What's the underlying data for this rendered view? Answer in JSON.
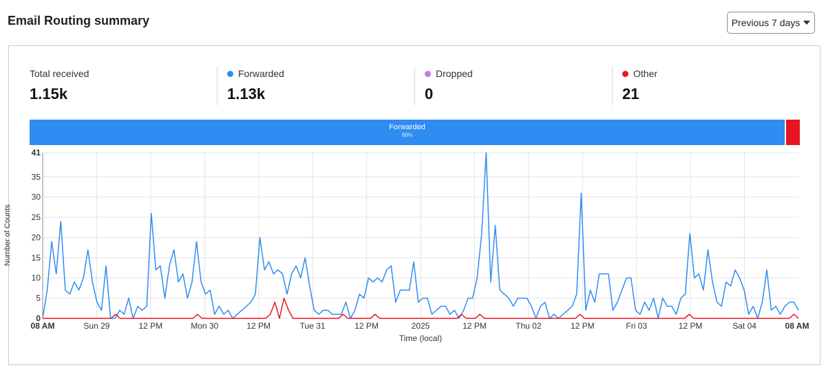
{
  "header": {
    "title": "Email Routing summary",
    "range_label": "Previous 7 days"
  },
  "stats": [
    {
      "label": "Total received",
      "value": "1.15k",
      "color": ""
    },
    {
      "label": "Forwarded",
      "value": "1.13k",
      "color": "#2f8cf2"
    },
    {
      "label": "Dropped",
      "value": "0",
      "color": "#c77be0"
    },
    {
      "label": "Other",
      "value": "21",
      "color": "#e8141f"
    }
  ],
  "stacked_bar": {
    "forwarded_label": "Forwarded",
    "forwarded_percent": "98%",
    "forwarded_fraction": 0.98,
    "other_fraction": 0.02
  },
  "chart_data": {
    "type": "line",
    "xlabel": "Time (local)",
    "ylabel": "Number of Counts",
    "ylim": [
      0,
      41
    ],
    "yticks": [
      "0",
      "5",
      "10",
      "15",
      "20",
      "25",
      "30",
      "35",
      "41"
    ],
    "xticks": [
      "08 AM",
      "Sun 29",
      "12 PM",
      "Mon 30",
      "12 PM",
      "Tue 31",
      "12 PM",
      "2025",
      "12 PM",
      "Thu 02",
      "12 PM",
      "Fri 03",
      "12 PM",
      "Sat 04",
      "08 AM"
    ],
    "grid": true,
    "series": [
      {
        "name": "Forwarded",
        "color": "#2f8cf2",
        "values": [
          0,
          7,
          19,
          11,
          24,
          7,
          6,
          9,
          7,
          10,
          17,
          9,
          4,
          2,
          13,
          0,
          0,
          2,
          1,
          5,
          0,
          3,
          2,
          3,
          26,
          12,
          13,
          5,
          13,
          17,
          9,
          11,
          5,
          9,
          19,
          9,
          6,
          7,
          1,
          3,
          1,
          2,
          0,
          1,
          2,
          3,
          4,
          6,
          20,
          12,
          14,
          11,
          12,
          11,
          6,
          11,
          13,
          10,
          15,
          8,
          2,
          1,
          2,
          2,
          1,
          1,
          1,
          4,
          0,
          2,
          6,
          5,
          10,
          9,
          10,
          9,
          12,
          13,
          4,
          7,
          7,
          7,
          14,
          4,
          5,
          5,
          1,
          2,
          3,
          3,
          1,
          2,
          0,
          2,
          5,
          5,
          10,
          21,
          41,
          9,
          23,
          7,
          6,
          5,
          3,
          5,
          5,
          5,
          3,
          0,
          3,
          4,
          0,
          1,
          0,
          1,
          2,
          3,
          6,
          31,
          2,
          7,
          4,
          11,
          11,
          11,
          2,
          4,
          7,
          10,
          10,
          2,
          1,
          4,
          2,
          5,
          0,
          5,
          3,
          3,
          1,
          5,
          6,
          21,
          10,
          11,
          7,
          17,
          9,
          4,
          3,
          9,
          8,
          12,
          10,
          7,
          1,
          3,
          0,
          4,
          12,
          2,
          3,
          1,
          3,
          4,
          4,
          2
        ]
      },
      {
        "name": "Other",
        "color": "#e8141f",
        "values": [
          0,
          0,
          0,
          0,
          0,
          0,
          0,
          0,
          0,
          0,
          0,
          0,
          0,
          0,
          0,
          0,
          1,
          0,
          0,
          0,
          0,
          0,
          0,
          0,
          0,
          0,
          0,
          0,
          0,
          0,
          0,
          0,
          0,
          0,
          1,
          0,
          0,
          0,
          0,
          0,
          0,
          0,
          0,
          0,
          0,
          0,
          0,
          0,
          0,
          0,
          1,
          4,
          0,
          5,
          2,
          0,
          0,
          0,
          0,
          0,
          0,
          0,
          0,
          0,
          0,
          0,
          1,
          0,
          0,
          0,
          0,
          0,
          0,
          1,
          0,
          0,
          0,
          0,
          0,
          0,
          0,
          0,
          0,
          0,
          0,
          0,
          0,
          0,
          0,
          0,
          0,
          0,
          1,
          0,
          0,
          0,
          1,
          0,
          0,
          0,
          0,
          0,
          0,
          0,
          0,
          0,
          0,
          0,
          0,
          0,
          0,
          0,
          0,
          0,
          0,
          0,
          0,
          0,
          1,
          0,
          0,
          0,
          0,
          0,
          0,
          0,
          0,
          0,
          0,
          0,
          0,
          0,
          0,
          0,
          0,
          0,
          0,
          0,
          0,
          0,
          0,
          0,
          1,
          0,
          0,
          0,
          0,
          0,
          0,
          0,
          0,
          0,
          0,
          0,
          0,
          0,
          0,
          0,
          0,
          0,
          0,
          0,
          0,
          0,
          0,
          1,
          0
        ]
      }
    ]
  }
}
